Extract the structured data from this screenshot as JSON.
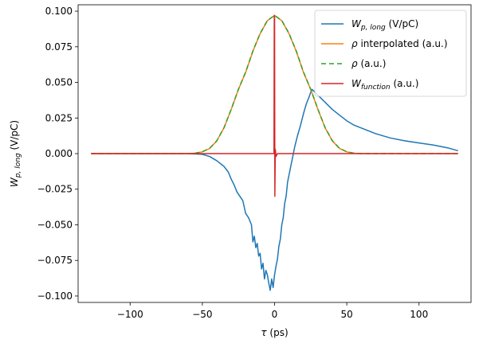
{
  "chart_data": {
    "type": "line",
    "xlabel_main": "τ",
    "xlabel_unit": " (ps)",
    "ylabel_main": "W",
    "ylabel_sub": "p, long",
    "ylabel_unit": " (V/pC)",
    "xlim": [
      -136,
      136
    ],
    "ylim": [
      -0.1045,
      0.1045
    ],
    "x_ticks": [
      -100,
      -50,
      0,
      50,
      100
    ],
    "y_ticks": [
      -0.1,
      -0.075,
      -0.05,
      -0.025,
      0.0,
      0.025,
      0.05,
      0.075,
      0.1
    ],
    "x_tick_labels": [
      "−100",
      "−50",
      "0",
      "50",
      "100"
    ],
    "y_tick_labels": [
      "−0.100",
      "−0.075",
      "−0.050",
      "−0.025",
      "0.000",
      "0.025",
      "0.050",
      "0.075",
      "0.100"
    ],
    "grid": false,
    "legend_position": "top-right",
    "series": [
      {
        "legend_main": "W",
        "legend_sub": "p, long",
        "legend_unit": " (V/pC)",
        "color": "#1f77b4",
        "dash": "",
        "points": [
          [
            -127,
            0
          ],
          [
            -60,
            0
          ],
          [
            -50,
            -0.0005
          ],
          [
            -45,
            -0.002
          ],
          [
            -40,
            -0.005
          ],
          [
            -35,
            -0.009
          ],
          [
            -32,
            -0.013
          ],
          [
            -30,
            -0.018
          ],
          [
            -28,
            -0.022
          ],
          [
            -26,
            -0.027
          ],
          [
            -24,
            -0.03
          ],
          [
            -22,
            -0.033
          ],
          [
            -20,
            -0.042
          ],
          [
            -18,
            -0.045
          ],
          [
            -16,
            -0.05
          ],
          [
            -15,
            -0.062
          ],
          [
            -14,
            -0.058
          ],
          [
            -13,
            -0.066
          ],
          [
            -12,
            -0.063
          ],
          [
            -11,
            -0.072
          ],
          [
            -10,
            -0.07
          ],
          [
            -9,
            -0.081
          ],
          [
            -8,
            -0.077
          ],
          [
            -7,
            -0.088
          ],
          [
            -6,
            -0.082
          ],
          [
            -5,
            -0.085
          ],
          [
            -4,
            -0.091
          ],
          [
            -3,
            -0.096
          ],
          [
            -2,
            -0.088
          ],
          [
            -1,
            -0.094
          ],
          [
            0,
            -0.085
          ],
          [
            1,
            -0.079
          ],
          [
            2,
            -0.074
          ],
          [
            3,
            -0.065
          ],
          [
            4,
            -0.06
          ],
          [
            5,
            -0.05
          ],
          [
            6,
            -0.045
          ],
          [
            7,
            -0.035
          ],
          [
            8,
            -0.03
          ],
          [
            9,
            -0.02
          ],
          [
            10,
            -0.015
          ],
          [
            12,
            -0.005
          ],
          [
            14,
            0.005
          ],
          [
            16,
            0.013
          ],
          [
            18,
            0.02
          ],
          [
            20,
            0.028
          ],
          [
            22,
            0.035
          ],
          [
            24,
            0.04
          ],
          [
            25,
            0.043
          ],
          [
            26,
            0.045
          ],
          [
            28,
            0.043
          ],
          [
            30,
            0.041
          ],
          [
            32,
            0.039
          ],
          [
            35,
            0.036
          ],
          [
            40,
            0.031
          ],
          [
            45,
            0.027
          ],
          [
            50,
            0.023
          ],
          [
            55,
            0.02
          ],
          [
            60,
            0.018
          ],
          [
            70,
            0.014
          ],
          [
            80,
            0.011
          ],
          [
            90,
            0.009
          ],
          [
            100,
            0.0075
          ],
          [
            110,
            0.006
          ],
          [
            120,
            0.004
          ],
          [
            127,
            0.002
          ]
        ]
      },
      {
        "legend_main": "ρ",
        "legend_sub": "",
        "legend_unit": " interpolated (a.u.)",
        "color": "#ff7f0e",
        "dash": "",
        "points": [
          [
            -127,
            0
          ],
          [
            -60,
            0
          ],
          [
            -55,
            0.0003
          ],
          [
            -50,
            0.0012
          ],
          [
            -45,
            0.0036
          ],
          [
            -40,
            0.0089
          ],
          [
            -35,
            0.0181
          ],
          [
            -30,
            0.031
          ],
          [
            -25,
            0.0451
          ],
          [
            -20,
            0.0571
          ],
          [
            -15,
            0.0719
          ],
          [
            -10,
            0.0842
          ],
          [
            -5,
            0.0933
          ],
          [
            0,
            0.097
          ],
          [
            5,
            0.0933
          ],
          [
            10,
            0.0842
          ],
          [
            15,
            0.0719
          ],
          [
            20,
            0.0571
          ],
          [
            25,
            0.0451
          ],
          [
            30,
            0.031
          ],
          [
            35,
            0.0181
          ],
          [
            40,
            0.0089
          ],
          [
            45,
            0.0036
          ],
          [
            50,
            0.0012
          ],
          [
            55,
            0.0003
          ],
          [
            60,
            0
          ],
          [
            127,
            0
          ]
        ]
      },
      {
        "legend_main": "ρ",
        "legend_sub": "",
        "legend_unit": " (a.u.)",
        "color": "#2ca02c",
        "dash": "6,4",
        "points": [
          [
            -127,
            0
          ],
          [
            -60,
            0
          ],
          [
            -55,
            0.0003
          ],
          [
            -50,
            0.0013
          ],
          [
            -45,
            0.0037
          ],
          [
            -40,
            0.009
          ],
          [
            -35,
            0.0182
          ],
          [
            -30,
            0.0312
          ],
          [
            -25,
            0.0453
          ],
          [
            -20,
            0.0573
          ],
          [
            -15,
            0.0721
          ],
          [
            -10,
            0.0844
          ],
          [
            -5,
            0.0935
          ],
          [
            0,
            0.097
          ],
          [
            5,
            0.0935
          ],
          [
            10,
            0.0844
          ],
          [
            15,
            0.0721
          ],
          [
            20,
            0.0573
          ],
          [
            25,
            0.0453
          ],
          [
            30,
            0.0312
          ],
          [
            35,
            0.0182
          ],
          [
            40,
            0.009
          ],
          [
            45,
            0.0037
          ],
          [
            50,
            0.0013
          ],
          [
            55,
            0.0003
          ],
          [
            60,
            0
          ],
          [
            127,
            0
          ]
        ]
      },
      {
        "legend_main": "W",
        "legend_sub": "function",
        "legend_unit": " (a.u.)",
        "color": "#d62728",
        "dash": "",
        "points": [
          [
            -127,
            0
          ],
          [
            -0.4,
            0
          ],
          [
            -0.2,
            0.097
          ],
          [
            0,
            0.097
          ],
          [
            0.2,
            -0.03
          ],
          [
            0.5,
            0.003
          ],
          [
            1,
            -0.002
          ],
          [
            2,
            0
          ],
          [
            127,
            0
          ]
        ]
      }
    ]
  }
}
